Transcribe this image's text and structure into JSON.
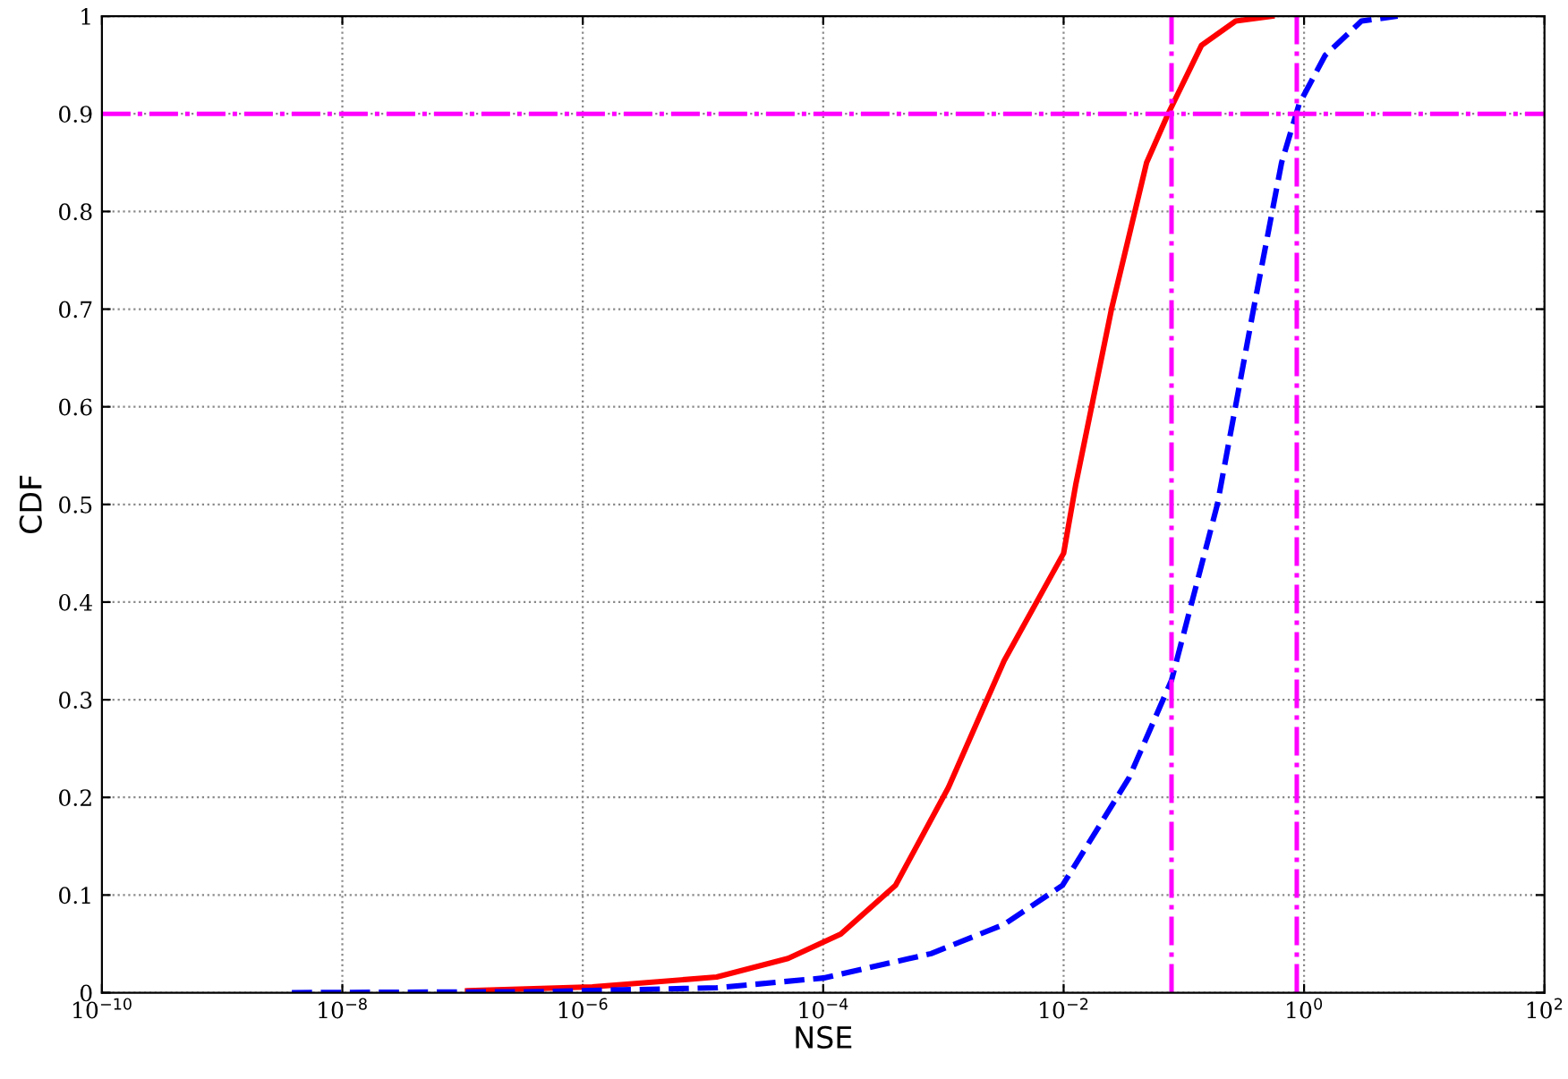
{
  "chart_data": {
    "type": "line",
    "xlabel": "NSE",
    "ylabel": "CDF",
    "log": "x",
    "xlim": [
      1e-10,
      100
    ],
    "ylim": [
      0,
      1
    ],
    "xticks": [
      {
        "value": 1e-10,
        "label": "10$^{−10}$"
      },
      {
        "value": 1e-08,
        "label": "10$^{−8}$"
      },
      {
        "value": 1e-06,
        "label": "10$^{−6}$"
      },
      {
        "value": 0.0001,
        "label": "10$^{−4}$"
      },
      {
        "value": 0.01,
        "label": "10$^{−2}$"
      },
      {
        "value": 1,
        "label": "10$^{0}$"
      },
      {
        "value": 100,
        "label": "10$^{2}$"
      }
    ],
    "yticks": [
      0,
      0.1,
      0.2,
      0.3,
      0.4,
      0.5,
      0.6,
      0.7,
      0.8,
      0.9,
      1
    ],
    "grid": true,
    "legend": false,
    "series": [
      {
        "color": "#ff0000",
        "line_style": "solid",
        "x": [
          1.1e-07,
          1.2e-06,
          1.3e-05,
          5.1e-05,
          0.00014,
          0.0004,
          0.0011,
          0.0032,
          0.01,
          0.0126,
          0.025,
          0.049,
          0.074,
          0.14,
          0.27,
          0.54
        ],
        "values": [
          0.002,
          0.006,
          0.016,
          0.035,
          0.06,
          0.11,
          0.21,
          0.34,
          0.45,
          0.52,
          0.7,
          0.85,
          0.9,
          0.97,
          0.995,
          1.0
        ]
      },
      {
        "color": "#0000ff",
        "line_style": "dashed",
        "x": [
          3.8e-09,
          4.2e-07,
          1.3e-05,
          0.0001,
          0.00079,
          0.0032,
          0.0098,
          0.035,
          0.079,
          0.19,
          0.38,
          0.65,
          0.91,
          1.5,
          3.0,
          6.0
        ],
        "values": [
          0,
          0.001,
          0.005,
          0.015,
          0.04,
          0.07,
          0.11,
          0.22,
          0.32,
          0.5,
          0.7,
          0.85,
          0.91,
          0.96,
          0.995,
          1.0
        ]
      }
    ],
    "ref_lines": [
      {
        "axis": "y",
        "value": 0.9,
        "color": "#ff00ff",
        "line_style": "dashdot"
      },
      {
        "axis": "x",
        "value": 0.079,
        "color": "#ff00ff",
        "line_style": "dashdot"
      },
      {
        "axis": "x",
        "value": 0.87,
        "color": "#ff00ff",
        "line_style": "dashdot"
      }
    ]
  }
}
